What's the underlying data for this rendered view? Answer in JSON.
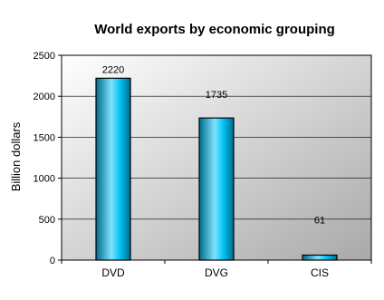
{
  "chart_data": {
    "type": "bar",
    "title": "World exports by economic grouping",
    "xlabel": "",
    "ylabel": "Billion dollars",
    "categories": [
      "DVD",
      "DVG",
      "CIS"
    ],
    "values": [
      2220,
      1735,
      61
    ],
    "data_labels": [
      "2220",
      "1735",
      "61"
    ],
    "ylim": [
      0,
      2500
    ],
    "yticks": [
      "0",
      "500",
      "1000",
      "1500",
      "2000",
      "2500"
    ],
    "grid": true,
    "legend": "none",
    "colors": {
      "bar_light": "#7fe3ff",
      "bar_mid": "#00c3f5",
      "bar_dark": "#006b8c",
      "plot_bg_light": "#ffffff",
      "plot_bg_dark": "#a9a9a9",
      "gridline": "#000000"
    }
  }
}
